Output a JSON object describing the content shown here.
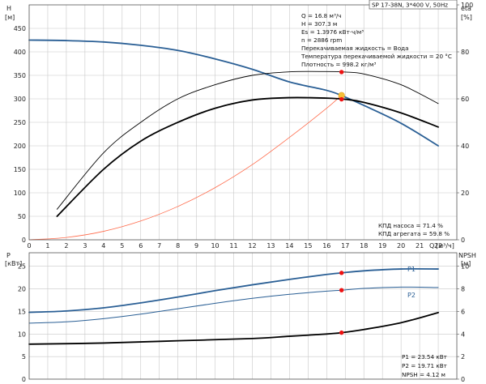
{
  "header": {
    "title": "SP 17-38N, 3*400 V, 50Hz"
  },
  "info_box": {
    "lines": [
      "Q = 16.8 м³/ч",
      "H = 307.3 м",
      "Es = 1.3976 кВт·ч/м³",
      "n = 2886 rpm",
      "Перекачиваемая жидкость = Вода",
      "Температура перекачиваемой жидкости = 20 °C",
      "Плотность = 998.2 кг/м³"
    ]
  },
  "efficiency_box": {
    "lines": [
      "КПД насоса = 71.4 %",
      "КПД агрегата = 59.8 %"
    ]
  },
  "power_box": {
    "lines": [
      "P1 = 23.54 кВт",
      "P2 = 19.71 кВт",
      "NPSH = 4.12 м"
    ]
  },
  "colors": {
    "pump_curve": "#2a5f95",
    "system_curve": "#ff6a4a",
    "efficiency": "#000000",
    "duty_point": "#ee1111",
    "intersection": "#f5c038"
  },
  "chart_data": [
    {
      "type": "line",
      "panel": "top",
      "xlabel": "Q",
      "xunit": "[м³/ч]",
      "ylabel": "H",
      "yunit": "[м]",
      "y2label": "eta",
      "y2unit": "[%]",
      "xlim": [
        0,
        23
      ],
      "ylim": [
        0,
        500
      ],
      "y2lim": [
        0,
        100
      ],
      "xticks": [
        0,
        1,
        2,
        3,
        4,
        5,
        6,
        7,
        8,
        9,
        10,
        11,
        12,
        13,
        14,
        15,
        16,
        17,
        18,
        19,
        20,
        21,
        22
      ],
      "yticks": [
        0,
        50,
        100,
        150,
        200,
        250,
        300,
        350,
        400,
        450
      ],
      "y2ticks": [
        0,
        20,
        40,
        60,
        80,
        100
      ],
      "grid": true,
      "series": [
        {
          "key": "H",
          "axis": "left",
          "color": "#2a5f95",
          "width": 1.8,
          "x": [
            0,
            2,
            4,
            6,
            8,
            10,
            12,
            14,
            16,
            16.8,
            18,
            20,
            22
          ],
          "y": [
            425,
            424,
            421,
            414,
            403,
            385,
            363,
            336,
            318,
            307,
            286,
            248,
            200
          ]
        },
        {
          "key": "system",
          "axis": "left",
          "color": "#ff6a4a",
          "width": 0.8,
          "x": [
            0,
            2,
            4,
            6,
            8,
            10,
            12,
            14,
            16,
            16.8
          ],
          "y": [
            0,
            5,
            18,
            40,
            71,
            111,
            160,
            218,
            280,
            308
          ]
        },
        {
          "key": "eta_pump",
          "axis": "right",
          "color": "#000000",
          "width": 0.9,
          "x": [
            1.5,
            4,
            6,
            8,
            10,
            12,
            14,
            16,
            17,
            18,
            20,
            22
          ],
          "y": [
            13,
            37,
            50,
            60,
            66,
            70,
            71.5,
            71.6,
            71.4,
            70.6,
            66,
            58
          ]
        },
        {
          "key": "eta_unit",
          "axis": "right",
          "color": "#000000",
          "width": 1.8,
          "x": [
            1.5,
            4,
            6,
            8,
            10,
            12,
            14,
            16,
            17,
            18,
            20,
            22
          ],
          "y": [
            10,
            30,
            42,
            50,
            56,
            59.5,
            60.5,
            60.3,
            59.8,
            58.5,
            54,
            48
          ]
        }
      ],
      "points": [
        {
          "key": "H",
          "axis": "left",
          "x": 16.8,
          "y": 307.3,
          "color": "#f5c038",
          "r": 3.8
        },
        {
          "key": "eta_pump",
          "axis": "right",
          "x": 16.8,
          "y": 71.4,
          "color": "#ee1111",
          "r": 2.7
        },
        {
          "key": "eta_unit",
          "axis": "right",
          "x": 16.8,
          "y": 59.8,
          "color": "#ee1111",
          "r": 2.7
        }
      ]
    },
    {
      "type": "line",
      "panel": "bottom",
      "ylabel": "P",
      "yunit": "[кВт]",
      "y2label": "NPSH",
      "y2unit": "[м]",
      "xlim": [
        0,
        23
      ],
      "ylim": [
        0,
        28
      ],
      "y2lim": [
        0,
        11.2
      ],
      "yticks": [
        0,
        5,
        10,
        15,
        20,
        25
      ],
      "y2ticks": [
        0,
        2,
        4,
        6,
        8,
        10
      ],
      "grid": true,
      "series": [
        {
          "key": "P1",
          "name": "P1",
          "axis": "left",
          "color": "#2a5f95",
          "width": 1.8,
          "x": [
            0,
            2,
            4,
            6,
            8,
            10,
            12,
            14,
            16,
            16.8,
            18,
            20,
            22
          ],
          "y": [
            14.8,
            15.1,
            15.8,
            16.9,
            18.2,
            19.6,
            20.9,
            22.1,
            23.2,
            23.54,
            24.0,
            24.4,
            24.4
          ]
        },
        {
          "key": "P2",
          "name": "P2",
          "axis": "left",
          "color": "#2a5f95",
          "width": 1.0,
          "x": [
            0,
            2,
            4,
            6,
            8,
            10,
            12,
            14,
            16,
            16.8,
            18,
            20,
            22
          ],
          "y": [
            12.4,
            12.7,
            13.4,
            14.4,
            15.6,
            16.8,
            17.9,
            18.8,
            19.5,
            19.71,
            20.1,
            20.4,
            20.3
          ]
        },
        {
          "key": "NPSH",
          "axis": "right",
          "color": "#000000",
          "width": 1.8,
          "x": [
            0,
            4,
            8,
            12,
            14,
            16,
            16.8,
            18,
            20,
            22
          ],
          "y": [
            3.1,
            3.2,
            3.4,
            3.6,
            3.8,
            4.0,
            4.12,
            4.4,
            5.0,
            5.9
          ]
        }
      ],
      "points": [
        {
          "key": "P1",
          "axis": "left",
          "x": 16.8,
          "y": 23.54,
          "color": "#ee1111",
          "r": 2.7
        },
        {
          "key": "P2",
          "axis": "left",
          "x": 16.8,
          "y": 19.71,
          "color": "#ee1111",
          "r": 2.7
        },
        {
          "key": "NPSH",
          "axis": "right",
          "x": 16.8,
          "y": 4.12,
          "color": "#ee1111",
          "r": 2.7
        }
      ]
    }
  ]
}
